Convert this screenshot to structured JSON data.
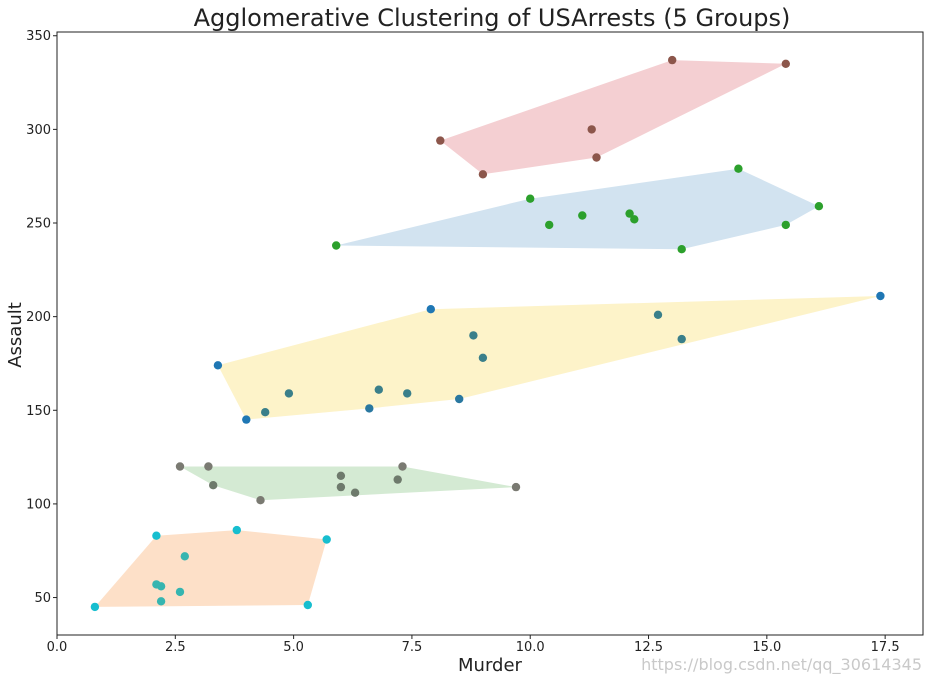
{
  "chart_data": {
    "type": "scatter",
    "title": "Agglomerative Clustering of USArrests (5 Groups)",
    "xlabel": "Murder",
    "ylabel": "Assault",
    "xlim": [
      0,
      18.3
    ],
    "ylim": [
      30,
      352
    ],
    "x_ticks": [
      0.0,
      2.5,
      5.0,
      7.5,
      10.0,
      12.5,
      15.0,
      17.5
    ],
    "x_tick_labels": [
      "0.0",
      "2.5",
      "5.0",
      "7.5",
      "10.0",
      "12.5",
      "15.0",
      "17.5"
    ],
    "y_ticks": [
      50,
      100,
      150,
      200,
      250,
      300,
      350
    ],
    "y_tick_labels": [
      "50",
      "100",
      "150",
      "200",
      "250",
      "300",
      "350"
    ],
    "grid": false,
    "watermark": "https://blog.csdn.net/qq_30614345",
    "series": [
      {
        "hull_color": "#f4cfd2",
        "points": [
          {
            "x": 8.1,
            "y": 294,
            "color": "#8c564b"
          },
          {
            "x": 9.0,
            "y": 276,
            "color": "#8c564b"
          },
          {
            "x": 11.3,
            "y": 300,
            "color": "#8c564b"
          },
          {
            "x": 11.4,
            "y": 285,
            "color": "#8c564b"
          },
          {
            "x": 13.0,
            "y": 337,
            "color": "#8c564b"
          },
          {
            "x": 15.4,
            "y": 335,
            "color": "#8c564b"
          }
        ]
      },
      {
        "hull_color": "#d2e3f0",
        "points": [
          {
            "x": 5.9,
            "y": 238,
            "color": "#2ca02c"
          },
          {
            "x": 10.0,
            "y": 263,
            "color": "#2ca02c"
          },
          {
            "x": 10.4,
            "y": 249,
            "color": "#2ca02c"
          },
          {
            "x": 11.1,
            "y": 254,
            "color": "#2ca02c"
          },
          {
            "x": 12.1,
            "y": 255,
            "color": "#2ca02c"
          },
          {
            "x": 12.2,
            "y": 252,
            "color": "#2ca02c"
          },
          {
            "x": 13.2,
            "y": 236,
            "color": "#2ca02c"
          },
          {
            "x": 14.4,
            "y": 279,
            "color": "#2ca02c"
          },
          {
            "x": 15.4,
            "y": 249,
            "color": "#2ca02c"
          },
          {
            "x": 16.1,
            "y": 259,
            "color": "#2ca02c"
          }
        ]
      },
      {
        "hull_color": "#fdf3c9",
        "points": [
          {
            "x": 3.4,
            "y": 174,
            "color": "#1f77b4"
          },
          {
            "x": 4.0,
            "y": 145,
            "color": "#1f77b4"
          },
          {
            "x": 4.4,
            "y": 149,
            "color": "#3a7f8a"
          },
          {
            "x": 4.9,
            "y": 159,
            "color": "#3a7f8a"
          },
          {
            "x": 6.6,
            "y": 151,
            "color": "#2a78a0"
          },
          {
            "x": 6.8,
            "y": 161,
            "color": "#3a7f8a"
          },
          {
            "x": 7.4,
            "y": 159,
            "color": "#3a7f8a"
          },
          {
            "x": 7.9,
            "y": 204,
            "color": "#1f77b4"
          },
          {
            "x": 8.5,
            "y": 156,
            "color": "#2a78a0"
          },
          {
            "x": 8.8,
            "y": 190,
            "color": "#3a7f8a"
          },
          {
            "x": 9.0,
            "y": 178,
            "color": "#3a7f8a"
          },
          {
            "x": 12.7,
            "y": 201,
            "color": "#3a7f8a"
          },
          {
            "x": 13.2,
            "y": 188,
            "color": "#3a7f8a"
          },
          {
            "x": 17.4,
            "y": 211,
            "color": "#1f77b4"
          }
        ]
      },
      {
        "hull_color": "#d4ead3",
        "points": [
          {
            "x": 2.6,
            "y": 120,
            "color": "#7a7a72"
          },
          {
            "x": 3.2,
            "y": 120,
            "color": "#7a7a72"
          },
          {
            "x": 3.3,
            "y": 110,
            "color": "#6e7a6c"
          },
          {
            "x": 4.3,
            "y": 102,
            "color": "#7a7a72"
          },
          {
            "x": 6.0,
            "y": 115,
            "color": "#6e7a6c"
          },
          {
            "x": 6.0,
            "y": 109,
            "color": "#6e7a6c"
          },
          {
            "x": 6.3,
            "y": 106,
            "color": "#6e7a6c"
          },
          {
            "x": 7.2,
            "y": 113,
            "color": "#6e7a6c"
          },
          {
            "x": 7.3,
            "y": 120,
            "color": "#7a7a72"
          },
          {
            "x": 9.7,
            "y": 109,
            "color": "#7a7a72"
          }
        ]
      },
      {
        "hull_color": "#fde0c8",
        "points": [
          {
            "x": 0.8,
            "y": 45,
            "color": "#17becf"
          },
          {
            "x": 2.1,
            "y": 83,
            "color": "#17becf"
          },
          {
            "x": 2.1,
            "y": 57,
            "color": "#36b5b0"
          },
          {
            "x": 2.2,
            "y": 56,
            "color": "#36b5b0"
          },
          {
            "x": 2.2,
            "y": 48,
            "color": "#36b5b0"
          },
          {
            "x": 2.6,
            "y": 53,
            "color": "#36b5b0"
          },
          {
            "x": 2.7,
            "y": 72,
            "color": "#36b5b0"
          },
          {
            "x": 3.8,
            "y": 86,
            "color": "#17becf"
          },
          {
            "x": 5.3,
            "y": 46,
            "color": "#17becf"
          },
          {
            "x": 5.7,
            "y": 81,
            "color": "#17becf"
          }
        ]
      }
    ]
  }
}
